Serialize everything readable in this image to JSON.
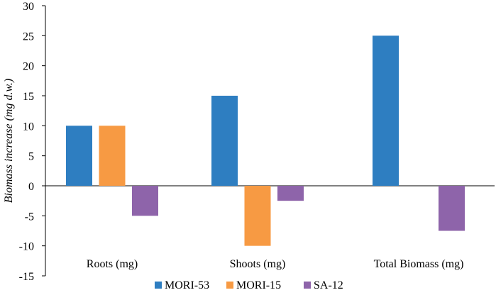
{
  "chart_data": {
    "type": "bar",
    "title": "",
    "xlabel": "",
    "ylabel": "Biomass increase (mg d.w.)",
    "categories": [
      "Roots (mg)",
      "Shoots (mg)",
      "Total Biomass (mg)"
    ],
    "series": [
      {
        "name": "MORI-53",
        "color": "#2E7EC1",
        "values": [
          10,
          15,
          25
        ]
      },
      {
        "name": "MORI-15",
        "color": "#F79A43",
        "values": [
          10,
          -10,
          null
        ]
      },
      {
        "name": "SA-12",
        "color": "#8E64AA",
        "values": [
          -5,
          -2.5,
          -7.5
        ]
      }
    ],
    "ylim": [
      -15,
      30
    ],
    "yticks": [
      30,
      25,
      20,
      15,
      10,
      5,
      0,
      -5,
      -10,
      -15
    ],
    "grid": false,
    "legend_position": "bottom"
  }
}
